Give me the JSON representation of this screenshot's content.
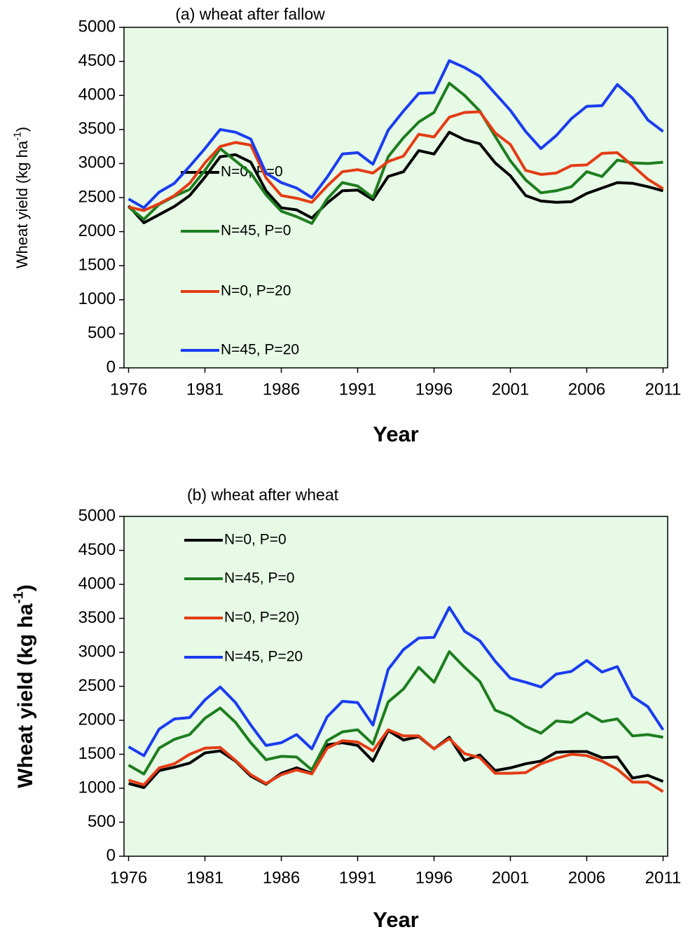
{
  "chart_data": [
    {
      "type": "line",
      "title": "(a) wheat after fallow",
      "x": [
        1976,
        1977,
        1978,
        1979,
        1980,
        1981,
        1982,
        1983,
        1984,
        1985,
        1986,
        1987,
        1988,
        1989,
        1990,
        1991,
        1992,
        1993,
        1994,
        1995,
        1996,
        1997,
        1998,
        1999,
        2000,
        2001,
        2002,
        2003,
        2004,
        2005,
        2006,
        2007,
        2008,
        2009,
        2010,
        2011
      ],
      "series": [
        {
          "name": "N=0, P=0",
          "color": "#000000",
          "values": [
            2380,
            2130,
            2250,
            2370,
            2530,
            2800,
            3100,
            3130,
            3020,
            2600,
            2350,
            2320,
            2200,
            2420,
            2600,
            2610,
            2470,
            2810,
            2880,
            3190,
            3140,
            3460,
            3350,
            3290,
            3010,
            2820,
            2530,
            2450,
            2430,
            2440,
            2560,
            2640,
            2720,
            2710,
            2660,
            2600
          ]
        },
        {
          "name": "N=45, P=0",
          "color": "#1e7d1e",
          "values": [
            2360,
            2180,
            2400,
            2520,
            2620,
            2900,
            3220,
            3040,
            2860,
            2540,
            2300,
            2220,
            2120,
            2480,
            2720,
            2670,
            2500,
            3100,
            3380,
            3610,
            3750,
            4180,
            4000,
            3770,
            3400,
            3040,
            2760,
            2570,
            2600,
            2660,
            2880,
            2810,
            3050,
            3010,
            3000,
            3020
          ]
        },
        {
          "name": "N=0, P=20",
          "color": "#e43c14",
          "values": [
            2360,
            2310,
            2410,
            2530,
            2710,
            3010,
            3250,
            3310,
            3270,
            2790,
            2530,
            2490,
            2430,
            2670,
            2880,
            2910,
            2860,
            3030,
            3110,
            3430,
            3390,
            3680,
            3750,
            3760,
            3450,
            3280,
            2900,
            2840,
            2860,
            2970,
            2980,
            3150,
            3160,
            2970,
            2770,
            2630
          ]
        },
        {
          "name": "N=45, P=20",
          "color": "#1a3cf0",
          "values": [
            2480,
            2350,
            2580,
            2710,
            2960,
            3220,
            3500,
            3460,
            3360,
            2860,
            2720,
            2640,
            2500,
            2800,
            3140,
            3160,
            2990,
            3490,
            3770,
            4030,
            4040,
            4510,
            4410,
            4280,
            4030,
            3780,
            3470,
            3220,
            3410,
            3660,
            3840,
            3850,
            4160,
            3960,
            3640,
            3470
          ]
        }
      ],
      "xlim": [
        1975.7,
        2011.3
      ],
      "xticks": [
        1976,
        1981,
        1986,
        1991,
        1996,
        2001,
        2006,
        2011
      ],
      "ylim": [
        0,
        5000
      ],
      "yticks": [
        0,
        500,
        1000,
        1500,
        2000,
        2500,
        3000,
        3500,
        4000,
        4500,
        5000
      ],
      "xlabel": "Year",
      "ylabel": {
        "text": "Wheat yield (kg ha",
        "sup": "-1",
        "end": ")"
      }
    },
    {
      "type": "line",
      "title": "(b) wheat after wheat",
      "x": [
        1976,
        1977,
        1978,
        1979,
        1980,
        1981,
        1982,
        1983,
        1984,
        1985,
        1986,
        1987,
        1988,
        1989,
        1990,
        1991,
        1992,
        1993,
        1994,
        1995,
        1996,
        1997,
        1998,
        1999,
        2000,
        2001,
        2002,
        2003,
        2004,
        2005,
        2006,
        2007,
        2008,
        2009,
        2010,
        2011
      ],
      "series": [
        {
          "name": "N=0, P=0",
          "color": "#000000",
          "values": [
            1070,
            1010,
            1260,
            1310,
            1370,
            1520,
            1550,
            1400,
            1180,
            1060,
            1220,
            1300,
            1220,
            1640,
            1670,
            1630,
            1400,
            1850,
            1710,
            1760,
            1580,
            1750,
            1410,
            1490,
            1260,
            1300,
            1360,
            1400,
            1530,
            1540,
            1540,
            1450,
            1460,
            1150,
            1190,
            1100
          ]
        },
        {
          "name": "N=45, P=0",
          "color": "#1e7d1e",
          "values": [
            1340,
            1210,
            1590,
            1720,
            1790,
            2030,
            2180,
            1970,
            1670,
            1420,
            1470,
            1460,
            1270,
            1700,
            1830,
            1860,
            1650,
            2270,
            2460,
            2780,
            2560,
            3010,
            2780,
            2570,
            2150,
            2060,
            1910,
            1810,
            1990,
            1970,
            2110,
            1980,
            2020,
            1770,
            1790,
            1750
          ]
        },
        {
          "name": "N=0, P=20)",
          "color": "#e43c14",
          "values": [
            1120,
            1050,
            1300,
            1360,
            1500,
            1590,
            1600,
            1410,
            1200,
            1070,
            1200,
            1270,
            1210,
            1590,
            1700,
            1680,
            1550,
            1860,
            1770,
            1770,
            1580,
            1730,
            1510,
            1450,
            1220,
            1220,
            1230,
            1360,
            1440,
            1500,
            1480,
            1400,
            1280,
            1090,
            1090,
            950
          ]
        },
        {
          "name": "N=45, P=20",
          "color": "#1a3cf0",
          "values": [
            1610,
            1480,
            1870,
            2020,
            2040,
            2300,
            2490,
            2260,
            1930,
            1630,
            1670,
            1790,
            1580,
            2050,
            2280,
            2260,
            1930,
            2750,
            3040,
            3210,
            3220,
            3660,
            3310,
            3170,
            2870,
            2620,
            2560,
            2490,
            2680,
            2720,
            2880,
            2710,
            2790,
            2350,
            2200,
            1860
          ]
        }
      ],
      "xlim": [
        1975.7,
        2011.3
      ],
      "xticks": [
        1976,
        1981,
        1986,
        1991,
        1996,
        2001,
        2006,
        2011
      ],
      "ylim": [
        0,
        5000
      ],
      "yticks": [
        0,
        500,
        1000,
        1500,
        2000,
        2500,
        3000,
        3500,
        4000,
        4500,
        5000
      ],
      "xlabel": "Year",
      "ylabel": {
        "text": "Wheat yield (kg ha",
        "sup": "-1",
        "end": ")"
      }
    }
  ]
}
